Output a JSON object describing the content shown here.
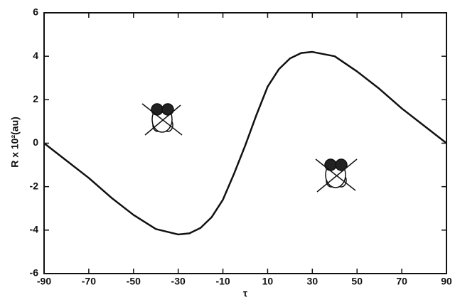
{
  "chart_data": {
    "type": "line",
    "x_label": "τ",
    "y_label": "R x 10²(au)",
    "x": [
      -90,
      -80,
      -70,
      -60,
      -50,
      -40,
      -30,
      -25,
      -20,
      -15,
      -10,
      -5,
      0,
      5,
      10,
      15,
      20,
      25,
      30,
      40,
      50,
      60,
      70,
      80,
      90
    ],
    "series": [
      {
        "name": "R",
        "color": "#111111",
        "values": [
          0,
          -0.8,
          -1.6,
          -2.5,
          -3.3,
          -3.95,
          -4.2,
          -4.15,
          -3.9,
          -3.4,
          -2.6,
          -1.4,
          -0.1,
          1.3,
          2.6,
          3.4,
          3.9,
          4.15,
          4.2,
          4.0,
          3.3,
          2.5,
          1.6,
          0.8,
          0
        ]
      }
    ],
    "xlim": [
      -90,
      90
    ],
    "xticks": [
      -90,
      -70,
      -50,
      -30,
      -10,
      10,
      30,
      50,
      70,
      90
    ],
    "ylim": [
      -6,
      6
    ],
    "yticks": [
      -6,
      -4,
      -2,
      0,
      2,
      4,
      6
    ],
    "grid": false
  }
}
